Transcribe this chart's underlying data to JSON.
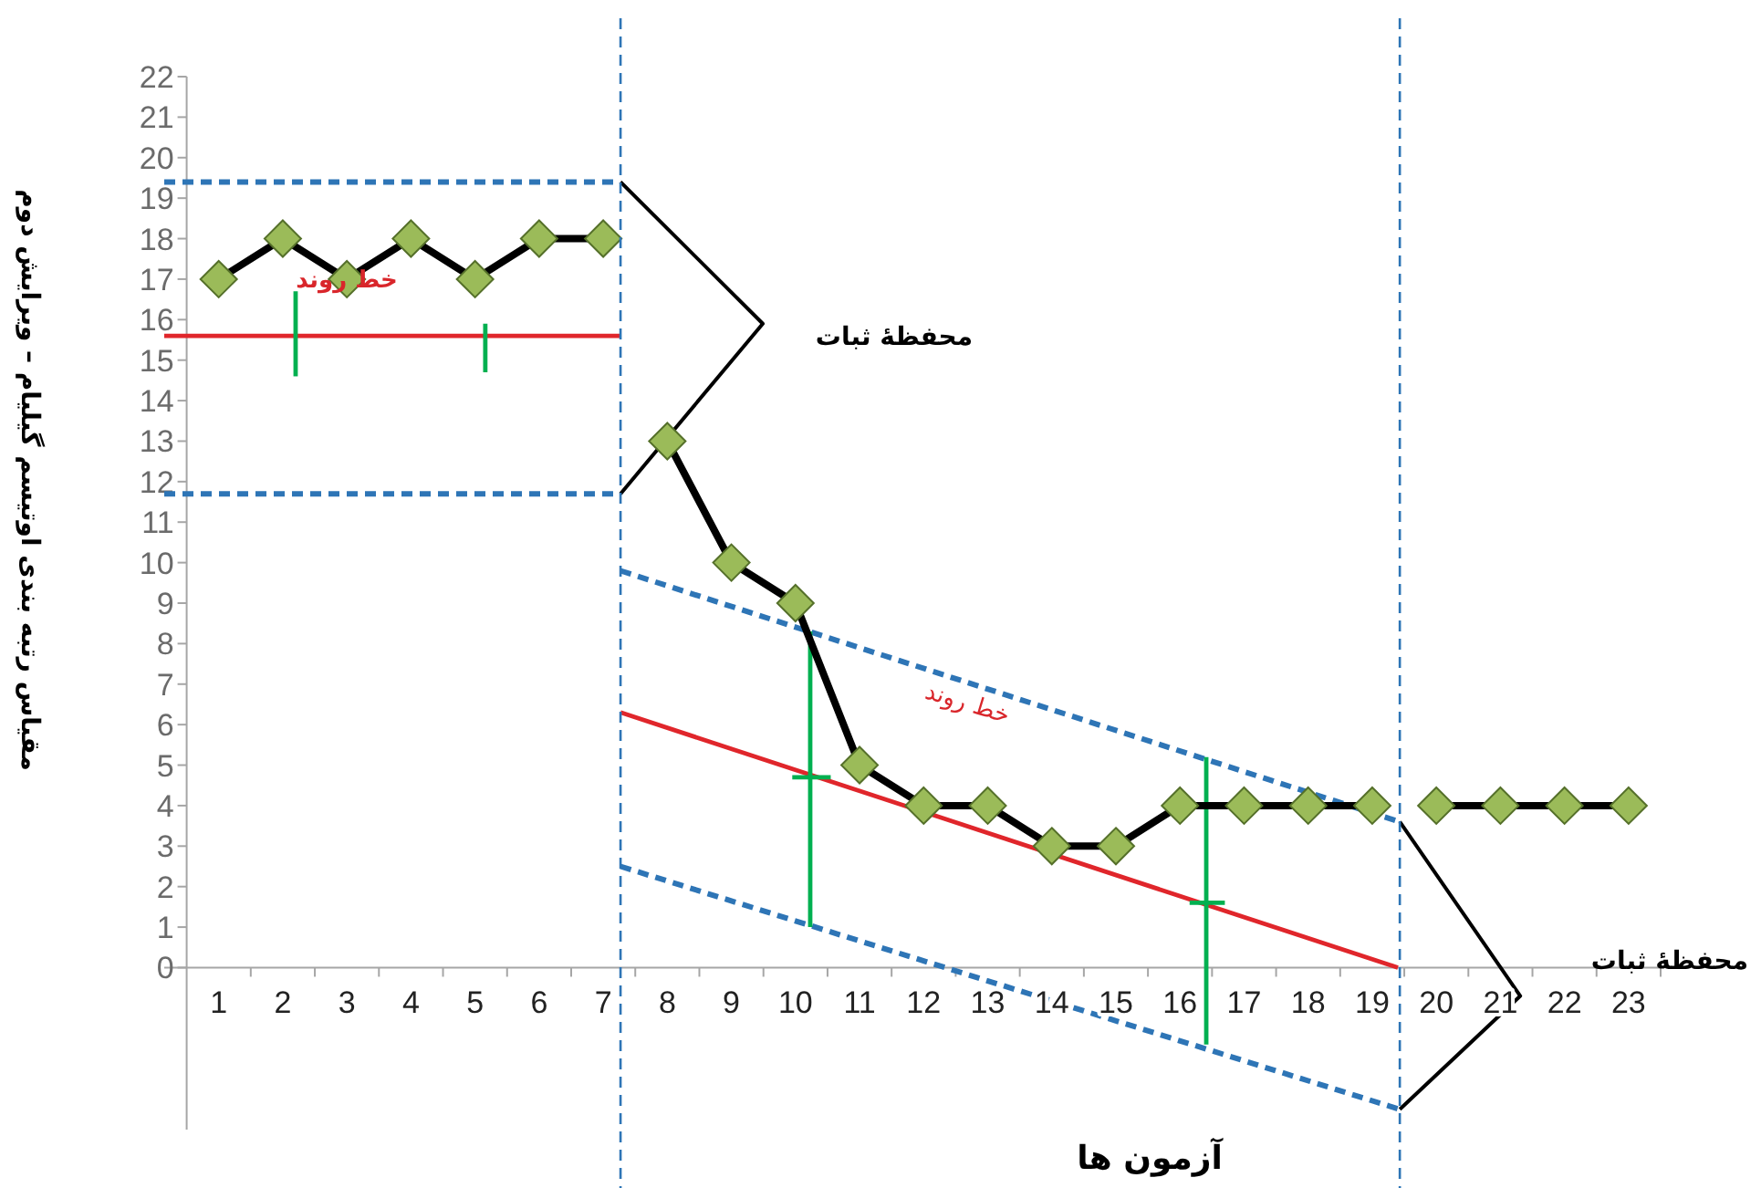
{
  "chart_data": {
    "type": "line",
    "xlabel": "آزمون ها",
    "ylabel": "مقیاس رتبه بندی اوتیسم گیلیام – ویرایش دوم",
    "xlim": [
      0.15,
      23.5
    ],
    "xticks": [
      1,
      2,
      3,
      4,
      5,
      6,
      7,
      8,
      9,
      10,
      11,
      12,
      13,
      14,
      15,
      16,
      17,
      18,
      19,
      20,
      21,
      22,
      23
    ],
    "ylim": [
      -4,
      22
    ],
    "yticks": [
      0,
      1,
      2,
      3,
      4,
      5,
      6,
      7,
      8,
      9,
      10,
      11,
      12,
      13,
      14,
      15,
      16,
      17,
      18,
      19,
      20,
      21,
      22
    ],
    "grid": false,
    "marker": "none",
    "line_style": "solid",
    "series": [
      {
        "color": "#e0262b",
        "x": [
          0.15,
          7.27
        ],
        "values": [
          15.6,
          15.6
        ]
      },
      {
        "color": "#e0262b",
        "x": [
          7.27,
          19.4
        ],
        "values": [
          6.3,
          0
        ]
      },
      {
        "color": "#2e75b6",
        "line_style": "dashed",
        "x": [
          0.15,
          7.27
        ],
        "values": [
          19.4,
          19.4
        ]
      },
      {
        "color": "#2e75b6",
        "line_style": "dashed",
        "x": [
          0.15,
          7.27
        ],
        "values": [
          11.7,
          11.7
        ]
      },
      {
        "color": "#2e75b6",
        "line_style": "dashed",
        "x": [
          7.27,
          19.43
        ],
        "values": [
          9.8,
          3.6
        ]
      },
      {
        "color": "#2e75b6",
        "line_style": "dashed",
        "x": [
          7.27,
          19.43
        ],
        "values": [
          2.5,
          -3.5
        ]
      },
      {
        "color": "#00b050",
        "x": [
          2.2,
          2.2
        ],
        "values": [
          14.6,
          16.7
        ]
      },
      {
        "color": "#00b050",
        "x": [
          5.16,
          5.16
        ],
        "values": [
          14.7,
          15.9
        ]
      },
      {
        "color": "#00b050",
        "x": [
          10.23,
          10.23
        ],
        "values": [
          1.0,
          8.3
        ]
      },
      {
        "color": "#00b050",
        "x": [
          9.95,
          10.55
        ],
        "values": [
          4.7,
          4.7
        ]
      },
      {
        "color": "#00b050",
        "x": [
          16.41,
          16.41
        ],
        "values": [
          -1.9,
          5.2
        ]
      },
      {
        "color": "#00b050",
        "x": [
          16.15,
          16.7
        ],
        "values": [
          1.6,
          1.6
        ]
      },
      {
        "color": "#000000",
        "x": [
          7.27,
          9.49,
          7.27
        ],
        "values": [
          19.4,
          15.9,
          11.7
        ]
      },
      {
        "color": "#000000",
        "x": [
          19.43,
          21.31,
          19.43
        ],
        "values": [
          3.6,
          -0.7,
          -3.5
        ]
      },
      {
        "color": "#000000",
        "x": [
          1,
          2,
          3,
          4,
          5,
          6,
          7
        ],
        "values": [
          17,
          18,
          17,
          18,
          17,
          18,
          18
        ]
      },
      {
        "color": "#000000",
        "x": [
          8,
          9,
          10,
          11,
          12,
          13,
          14,
          15,
          16,
          17,
          18,
          19
        ],
        "values": [
          13,
          10,
          9,
          5,
          4,
          4,
          3,
          3,
          4,
          4,
          4,
          4
        ]
      },
      {
        "color": "#000000",
        "x": [
          20,
          21,
          22,
          23
        ],
        "values": [
          4,
          4,
          4,
          4
        ]
      },
      {
        "type": "scatter",
        "marker": "diamond",
        "color": "#9bbb59",
        "x": [
          1,
          2,
          3,
          4,
          5,
          6,
          7,
          8,
          9,
          10,
          11,
          12,
          13,
          14,
          15,
          16,
          17,
          18,
          19,
          20,
          21,
          22,
          23
        ],
        "values": [
          17,
          18,
          17,
          18,
          17,
          18,
          18,
          13,
          10,
          9,
          5,
          4,
          4,
          3,
          3,
          4,
          4,
          4,
          4,
          4,
          4,
          4,
          4
        ]
      }
    ],
    "ref_lines": [
      {
        "axis": "x",
        "value": 7.27,
        "color": "#2e75b6",
        "line_style": "dashed"
      },
      {
        "axis": "x",
        "value": 19.43,
        "color": "#2e75b6",
        "line_style": "dashed"
      }
    ],
    "annotations": [
      "خط روند",
      "خط روند",
      "محفظهٔ ثبات",
      "محفظهٔ ثبات"
    ]
  }
}
